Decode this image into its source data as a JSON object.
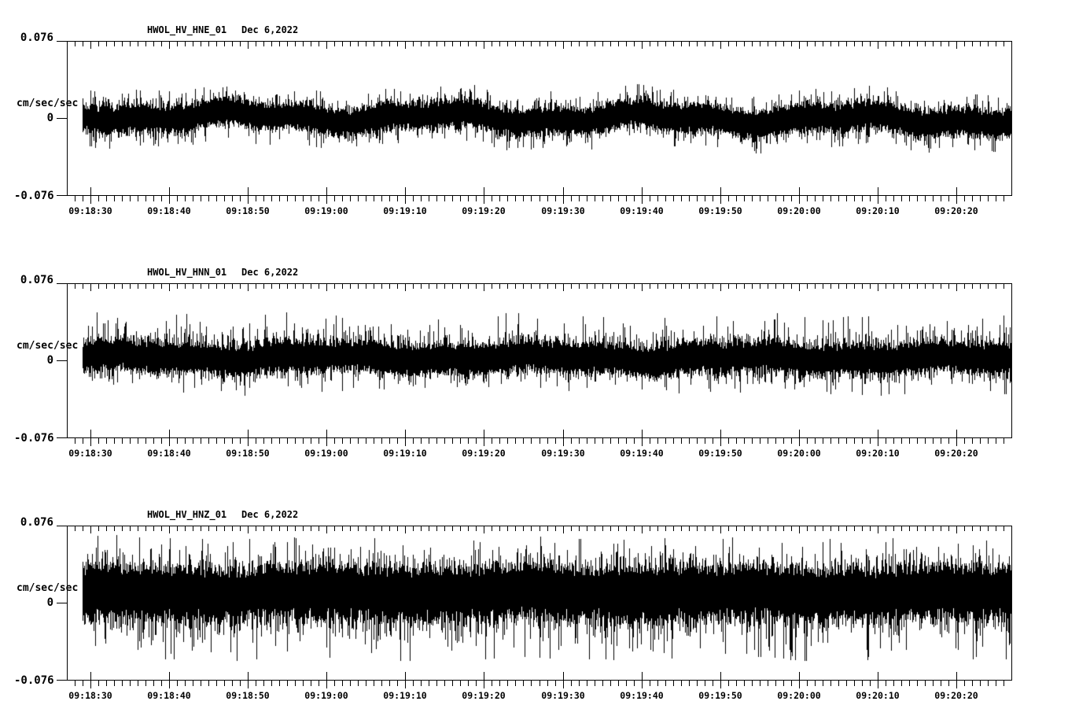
{
  "chart_data": {
    "type": "line",
    "subtype": "seismogram-min-max-trace",
    "background": "#ffffff",
    "trace_color": "#000000",
    "date_label": "Dec 6,2022",
    "y_axis": {
      "unit_label": "cm/sec/sec",
      "top_label": "0.076",
      "zero_label": "0",
      "bottom_label": "-0.076",
      "ylim": [
        -0.076,
        0.076
      ]
    },
    "x_axis": {
      "start_time": "09:18:27",
      "end_time": "09:20:27",
      "trace_start_time": "09:18:29",
      "minor_tick_seconds": 1,
      "major_tick_seconds": 10,
      "labels": [
        "09:18:30",
        "09:18:40",
        "09:18:50",
        "09:19:00",
        "09:19:10",
        "09:19:20",
        "09:19:30",
        "09:19:40",
        "09:19:50",
        "09:20:00",
        "09:20:10",
        "09:20:20"
      ]
    },
    "panels": [
      {
        "title": "HWOL_HV_HNE_01",
        "channel": "HNE",
        "seed": 7,
        "noise": {
          "core_amp": 0.0101,
          "tail_up": 0.0047,
          "tail_down": 0.0047,
          "cap_up": 0.028,
          "cap_down": 0.028,
          "wander_amp": 0.0039,
          "offset_start": -0.0023,
          "offset_end": 0.0023
        }
      },
      {
        "title": "HWOL_HV_HNN_01",
        "channel": "HNN",
        "seed": 13,
        "noise": {
          "core_amp": 0.0116,
          "tail_up": 0.0062,
          "tail_down": 0.0047,
          "cap_up": 0.0427,
          "cap_down": 0.035,
          "wander_amp": 0.0023,
          "offset_start": -0.0031,
          "offset_end": -0.0015
        }
      },
      {
        "title": "HWOL_HV_HNZ_01",
        "channel": "HNZ",
        "seed": 42,
        "noise": {
          "core_amp": 0.0209,
          "tail_up": 0.007,
          "tail_down": 0.0109,
          "cap_up": 0.0543,
          "cap_down": 0.066,
          "wander_amp": 0.0016,
          "offset_start": -0.0101,
          "offset_end": -0.0101
        }
      }
    ]
  }
}
